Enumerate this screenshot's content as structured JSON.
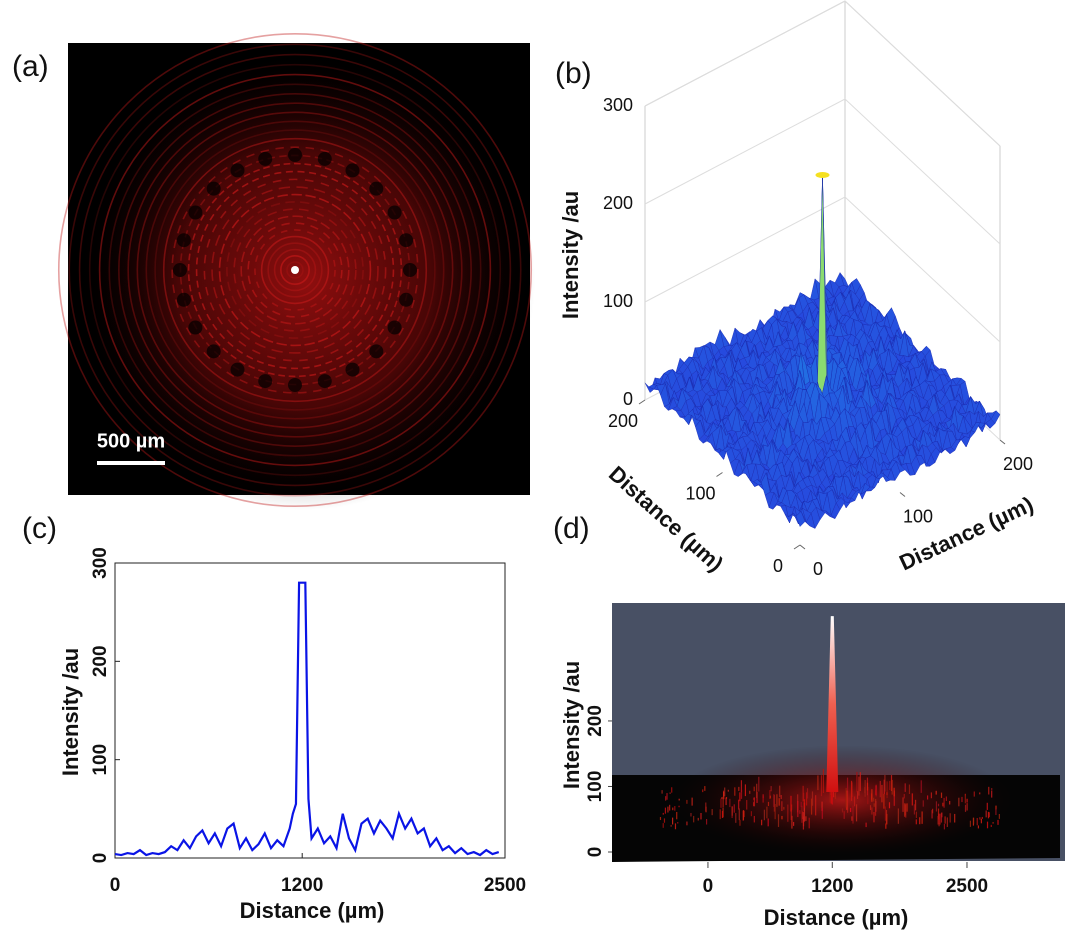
{
  "figure": {
    "panel_labels": [
      "(a)",
      "(b)",
      "(c)",
      "(d)"
    ],
    "scale_bar_label": "500 µm"
  },
  "chart_data": [
    {
      "type": "surface3d",
      "zlabel": "Intensity /au",
      "xlabel": "Distance (µm)",
      "ylabel": "Distance (µm)",
      "zlim": [
        0,
        300
      ],
      "zticks": [
        0,
        100,
        200,
        300
      ],
      "xlim": [
        0,
        200
      ],
      "xticks": [
        0,
        100,
        200
      ],
      "ylim": [
        0,
        200
      ],
      "yticks": [
        0,
        100,
        200
      ],
      "peak": 250,
      "grid": true
    },
    {
      "type": "line",
      "xlabel": "Distance (µm)",
      "ylabel": "Intensity /au",
      "color": "#0a14e6",
      "xlim": [
        0,
        2500
      ],
      "xticks": [
        0,
        1200,
        2500
      ],
      "ylim": [
        0,
        300
      ],
      "yticks": [
        0,
        100,
        200,
        300
      ],
      "x": [
        0,
        40,
        80,
        120,
        160,
        200,
        240,
        280,
        320,
        360,
        400,
        440,
        480,
        520,
        560,
        600,
        640,
        680,
        720,
        760,
        800,
        840,
        880,
        920,
        960,
        1000,
        1040,
        1080,
        1120,
        1140,
        1160,
        1180,
        1220,
        1240,
        1260,
        1300,
        1340,
        1380,
        1420,
        1460,
        1500,
        1540,
        1580,
        1620,
        1660,
        1700,
        1740,
        1780,
        1820,
        1860,
        1900,
        1940,
        1980,
        2020,
        2060,
        2100,
        2140,
        2180,
        2220,
        2260,
        2300,
        2340,
        2380,
        2420,
        2460
      ],
      "values": [
        4,
        3,
        5,
        4,
        8,
        3,
        5,
        4,
        6,
        12,
        8,
        18,
        10,
        22,
        28,
        15,
        25,
        12,
        30,
        35,
        10,
        20,
        8,
        14,
        25,
        10,
        18,
        12,
        30,
        45,
        55,
        280,
        280,
        60,
        20,
        30,
        15,
        22,
        10,
        45,
        20,
        8,
        35,
        40,
        25,
        38,
        30,
        20,
        45,
        30,
        40,
        25,
        30,
        12,
        20,
        8,
        12,
        5,
        10,
        4,
        6,
        3,
        8,
        4,
        6
      ]
    },
    {
      "type": "render3d",
      "xlabel": "Distance (µm)",
      "ylabel": "Intensity /au",
      "xlim": [
        -926,
        3446
      ],
      "xticks": [
        0,
        1200,
        2500
      ],
      "ylim": [
        0,
        380
      ],
      "yticks": [
        0,
        100,
        200
      ],
      "peak_x": 1200,
      "peak": 360
    }
  ]
}
